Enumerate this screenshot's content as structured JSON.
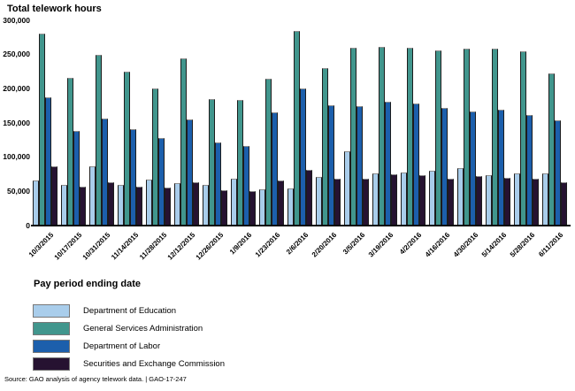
{
  "title": "Total telework hours",
  "xaxis_title": "Pay period ending date",
  "source_note": "Source: GAO analysis of agency telework data.  |  GAO-17-247",
  "colors": {
    "education": "#a9cdeb",
    "gsa": "#41968d",
    "labor": "#1c5fac",
    "sec": "#261231",
    "bar_outline": "#1c1c1c",
    "axis_line": "#0a0a0a"
  },
  "chart_data": {
    "type": "bar",
    "title": "Total telework hours",
    "xlabel": "Pay period ending date",
    "ylabel": "",
    "ylim": [
      0,
      300000
    ],
    "ytick_step": 50000,
    "grid": false,
    "legend_position": "bottom-left",
    "categories": [
      "10/3/2015",
      "10/17/2015",
      "10/31/2015",
      "11/14/2015",
      "11/28/2015",
      "12/12/2015",
      "12/26/2015",
      "1/9/2016",
      "1/23/2016",
      "2/6/2016",
      "2/20/2016",
      "3/5/2016",
      "3/19/2016",
      "4/2/2016",
      "4/16/2016",
      "4/30/2016",
      "5/14/2016",
      "5/28/2016",
      "6/11/2016"
    ],
    "series": [
      {
        "name": "Department of Education",
        "color": "#a9cdeb",
        "values": [
          66000,
          59000,
          87000,
          60000,
          67000,
          62000,
          59000,
          69000,
          53000,
          54000,
          71000,
          108000,
          76000,
          77000,
          80000,
          84000,
          74000,
          76000,
          76000
        ]
      },
      {
        "name": "General Services Administration",
        "color": "#41968d",
        "values": [
          280000,
          216000,
          249000,
          225000,
          200000,
          244000,
          185000,
          183000,
          215000,
          285000,
          230000,
          260000,
          261000,
          260000,
          256000,
          259000,
          258000,
          255000,
          223000
        ]
      },
      {
        "name": "Department of Labor",
        "color": "#1c5fac",
        "values": [
          187000,
          139000,
          156000,
          141000,
          128000,
          155000,
          121000,
          116000,
          166000,
          200000,
          176000,
          174000,
          181000,
          178000,
          172000,
          167000,
          170000,
          161000,
          154000
        ]
      },
      {
        "name": "Securities and Exchange Commission",
        "color": "#261231",
        "values": [
          87000,
          57000,
          63000,
          57000,
          56000,
          63000,
          52000,
          51000,
          66000,
          82000,
          69000,
          68000,
          75000,
          74000,
          68000,
          73000,
          70000,
          68000,
          64000
        ]
      }
    ]
  }
}
